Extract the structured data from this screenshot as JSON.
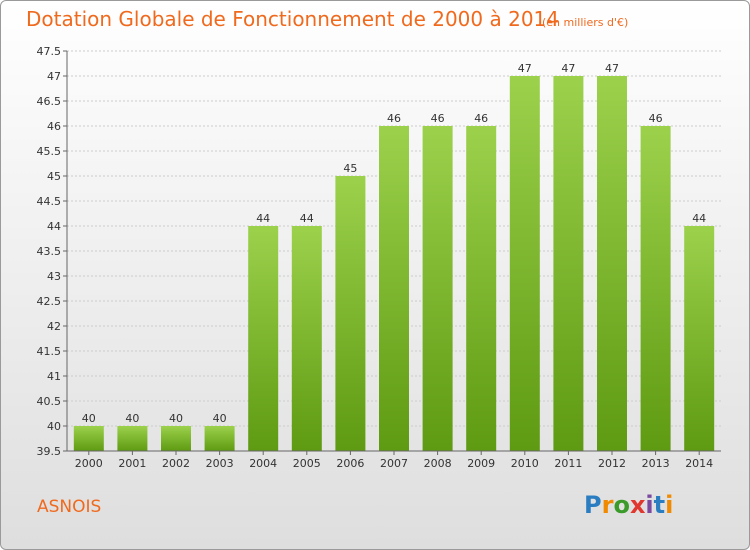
{
  "title": "Dotation Globale de Fonctionnement de 2000 à 2014",
  "subtitle": "(en milliers d'€)",
  "commune": "ASNOIS",
  "brand": "Proxiti",
  "colors": {
    "title": "#f06a1e",
    "bar_top": "#9cd14c",
    "bar_bottom": "#5e9a12",
    "grid": "#cccccc"
  },
  "chart_data": {
    "type": "bar",
    "categories": [
      "2000",
      "2001",
      "2002",
      "2003",
      "2004",
      "2005",
      "2006",
      "2007",
      "2008",
      "2009",
      "2010",
      "2011",
      "2012",
      "2013",
      "2014"
    ],
    "values": [
      40,
      40,
      40,
      40,
      44,
      44,
      45,
      46,
      46,
      46,
      47,
      47,
      47,
      46,
      44
    ],
    "data_labels": [
      "40",
      "40",
      "40",
      "40",
      "44",
      "44",
      "45",
      "46",
      "46",
      "46",
      "47",
      "47",
      "47",
      "46",
      "44"
    ],
    "yticks": [
      "39.5",
      "40",
      "40.5",
      "41",
      "41.5",
      "42",
      "42.5",
      "43",
      "43.5",
      "44",
      "44.5",
      "45",
      "45.5",
      "46",
      "46.5",
      "47",
      "47.5"
    ],
    "ylim": [
      39.5,
      47.5
    ],
    "grid": true,
    "xlabel": "",
    "ylabel": ""
  }
}
